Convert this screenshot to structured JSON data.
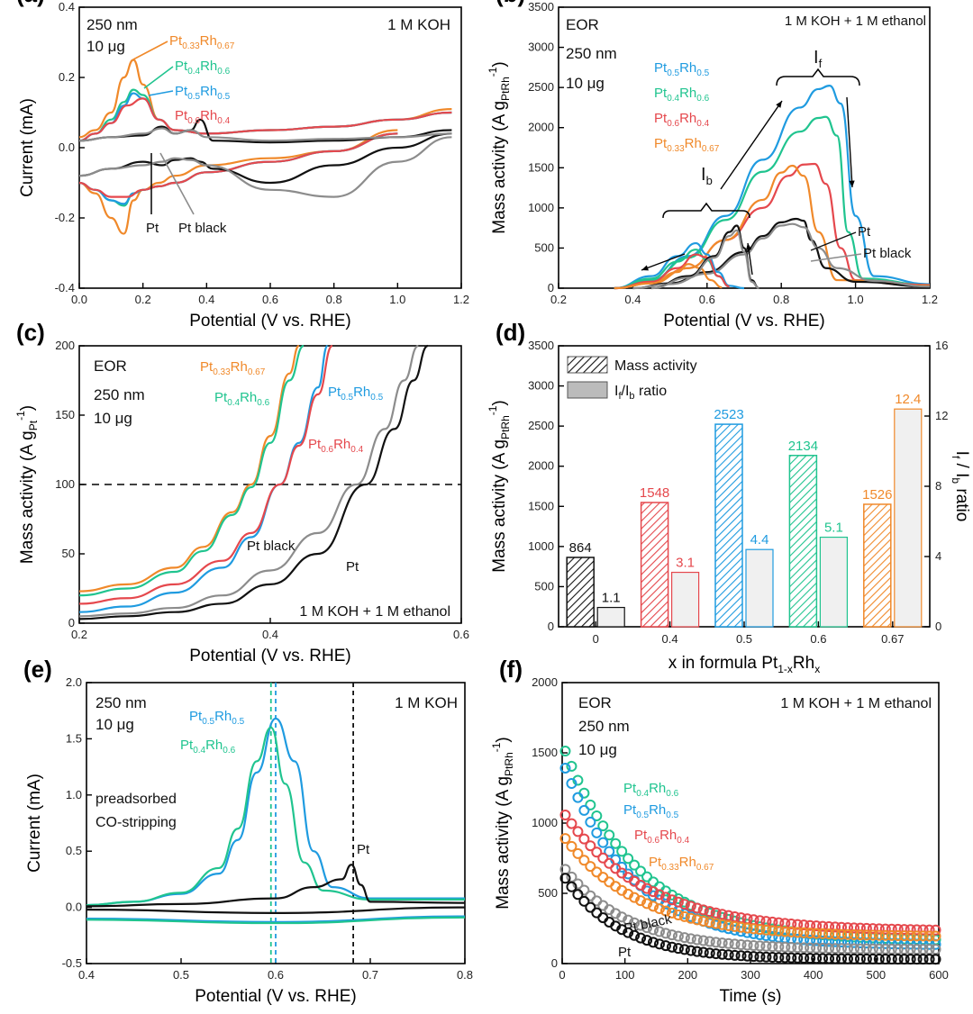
{
  "colors": {
    "Pt": "#111111",
    "Pt black": "#8c8c8c",
    "Pt0.5Rh0.5": "#1f9be0",
    "Pt0.4Rh0.6": "#20c48f",
    "Pt0.6Rh0.4": "#e5484d",
    "Pt0.33Rh0.67": "#f0892a"
  },
  "chart_data": [
    {
      "panel": "(a)",
      "type": "line",
      "xlabel": "Potential (V vs. RHE)",
      "ylabel": "Current (mA)",
      "xlim": [
        0.0,
        1.2
      ],
      "ylim": [
        -0.4,
        0.4
      ],
      "xticks": [
        "0.0",
        "0.2",
        "0.4",
        "0.6",
        "0.8",
        "1.0",
        "1.2"
      ],
      "yticks": [
        "-0.4",
        "-0.2",
        "0.0",
        "0.2",
        "0.4"
      ],
      "annotations": [
        "250 nm",
        "10 μg",
        "1 M KOH"
      ],
      "labels": [
        {
          "base": "Pt",
          "s1": "0.33",
          "mid": "Rh",
          "s2": "0.67",
          "key": "Pt0.33Rh0.67"
        },
        {
          "base": "Pt",
          "s1": "0.4",
          "mid": "Rh",
          "s2": "0.6",
          "key": "Pt0.4Rh0.6"
        },
        {
          "base": "Pt",
          "s1": "0.5",
          "mid": "Rh",
          "s2": "0.5",
          "key": "Pt0.5Rh0.5"
        },
        {
          "base": "Pt",
          "s1": "0.6",
          "mid": "Rh",
          "s2": "0.4",
          "key": "Pt0.6Rh0.4"
        }
      ],
      "pt_label": "Pt",
      "ptblack_label": "Pt black",
      "series": [
        {
          "name": "Pt0.33Rh0.67",
          "x": [
            0,
            0.05,
            0.1,
            0.14,
            0.17,
            0.2,
            0.25,
            0.3,
            0.4,
            0.6,
            0.8,
            1.0,
            1.17
          ],
          "y": [
            0.03,
            0.05,
            0.1,
            0.2,
            0.25,
            0.18,
            0.08,
            0.05,
            0.04,
            0.05,
            0.06,
            0.08,
            0.11
          ]
        },
        {
          "name": "Pt0.4Rh0.6",
          "x": [
            0,
            0.05,
            0.1,
            0.14,
            0.17,
            0.2,
            0.25,
            0.3,
            0.4,
            0.6,
            0.8,
            1.0,
            1.17
          ],
          "y": [
            0.02,
            0.04,
            0.08,
            0.13,
            0.165,
            0.15,
            0.08,
            0.05,
            0.04,
            0.05,
            0.06,
            0.08,
            0.1
          ]
        },
        {
          "name": "Pt0.5Rh0.5",
          "x": [
            0,
            0.05,
            0.1,
            0.14,
            0.17,
            0.2,
            0.25,
            0.3,
            0.4,
            0.6,
            0.8,
            1.0,
            1.17
          ],
          "y": [
            0.02,
            0.04,
            0.07,
            0.12,
            0.155,
            0.14,
            0.08,
            0.05,
            0.04,
            0.05,
            0.06,
            0.08,
            0.1
          ]
        },
        {
          "name": "Pt0.6Rh0.4",
          "x": [
            0,
            0.05,
            0.1,
            0.15,
            0.2,
            0.25,
            0.3,
            0.4,
            0.6,
            0.8,
            1.0,
            1.17
          ],
          "y": [
            0.02,
            0.04,
            0.07,
            0.12,
            0.14,
            0.08,
            0.05,
            0.04,
            0.05,
            0.06,
            0.08,
            0.1
          ]
        },
        {
          "name": "Pt",
          "x": [
            0,
            0.1,
            0.2,
            0.26,
            0.3,
            0.35,
            0.38,
            0.42,
            0.6,
            0.8,
            1.0,
            1.17
          ],
          "y": [
            0.02,
            0.03,
            0.035,
            0.06,
            0.04,
            0.05,
            0.08,
            0.02,
            0.015,
            0.02,
            0.03,
            0.05
          ]
        },
        {
          "name": "Pt black",
          "x": [
            0,
            0.1,
            0.2,
            0.26,
            0.3,
            0.35,
            0.4,
            0.6,
            0.8,
            1.0,
            1.17
          ],
          "y": [
            0.02,
            0.03,
            0.04,
            0.055,
            0.04,
            0.05,
            0.03,
            0.02,
            0.025,
            0.03,
            0.04
          ]
        }
      ]
    },
    {
      "panel": "(b)",
      "type": "line",
      "xlabel": "Potential (V vs. RHE)",
      "ylabel": "Mass activity (A g",
      "ylabel_sub": "PtRh",
      "ylabel_end": ")",
      "ylabel_sup": "-1",
      "xlim": [
        0.2,
        1.2
      ],
      "ylim": [
        0,
        3500
      ],
      "xticks": [
        "0.2",
        "0.4",
        "0.6",
        "0.8",
        "1.0",
        "1.2"
      ],
      "yticks": [
        "0",
        "500",
        "1000",
        "1500",
        "2000",
        "2500",
        "3000",
        "3500"
      ],
      "annotations": [
        "EOR",
        "250 nm",
        "10 μg",
        "1 M KOH + 1 M ethanol"
      ],
      "If_label": {
        "base": "I",
        "sub": "f"
      },
      "Ib_label": {
        "base": "I",
        "sub": "b"
      },
      "labels": [
        {
          "base": "Pt",
          "s1": "0.5",
          "mid": "Rh",
          "s2": "0.5",
          "key": "Pt0.5Rh0.5"
        },
        {
          "base": "Pt",
          "s1": "0.4",
          "mid": "Rh",
          "s2": "0.6",
          "key": "Pt0.4Rh0.6"
        },
        {
          "base": "Pt",
          "s1": "0.6",
          "mid": "Rh",
          "s2": "0.4",
          "key": "Pt0.6Rh0.4"
        },
        {
          "base": "Pt",
          "s1": "0.33",
          "mid": "Rh",
          "s2": "0.67",
          "key": "Pt0.33Rh0.67"
        }
      ],
      "pt_label": "Pt",
      "ptblack_label": "Pt black",
      "series": [
        {
          "name": "Pt0.5Rh0.5",
          "x": [
            0.35,
            0.45,
            0.55,
            0.65,
            0.75,
            0.85,
            0.9,
            0.93,
            0.96,
            1.0,
            1.05,
            1.2
          ],
          "y": [
            0,
            100,
            400,
            900,
            1600,
            2250,
            2480,
            2523,
            2300,
            900,
            150,
            50
          ]
        },
        {
          "name": "Pt0.4Rh0.6",
          "x": [
            0.35,
            0.45,
            0.55,
            0.65,
            0.75,
            0.85,
            0.9,
            0.92,
            0.95,
            0.98,
            1.02,
            1.2
          ],
          "y": [
            0,
            100,
            380,
            850,
            1450,
            1950,
            2120,
            2134,
            1900,
            700,
            120,
            40
          ]
        },
        {
          "name": "Pt0.6Rh0.4",
          "x": [
            0.35,
            0.45,
            0.55,
            0.65,
            0.75,
            0.82,
            0.86,
            0.89,
            0.92,
            0.96,
            1.0,
            1.2
          ],
          "y": [
            0,
            80,
            250,
            600,
            1000,
            1400,
            1540,
            1548,
            1300,
            500,
            100,
            40
          ]
        },
        {
          "name": "Pt0.33Rh0.67",
          "x": [
            0.35,
            0.45,
            0.55,
            0.65,
            0.75,
            0.8,
            0.83,
            0.86,
            0.9,
            0.95,
            1.2
          ],
          "y": [
            0,
            60,
            250,
            600,
            1100,
            1440,
            1526,
            1400,
            700,
            100,
            30
          ]
        },
        {
          "name": "Pt",
          "x": [
            0.4,
            0.5,
            0.6,
            0.7,
            0.75,
            0.8,
            0.84,
            0.86,
            0.88,
            0.92,
            1.0,
            1.2
          ],
          "y": [
            0,
            60,
            200,
            450,
            650,
            820,
            864,
            840,
            600,
            250,
            80,
            20
          ]
        },
        {
          "name": "Pt black",
          "x": [
            0.4,
            0.5,
            0.6,
            0.7,
            0.75,
            0.8,
            0.83,
            0.86,
            0.9,
            0.95,
            1.05,
            1.2
          ],
          "y": [
            0,
            50,
            180,
            420,
            620,
            780,
            800,
            760,
            500,
            250,
            90,
            20
          ]
        }
      ]
    },
    {
      "panel": "(c)",
      "type": "line",
      "xlabel": "Potential (V vs. RHE)",
      "ylabel": "Mass activity (A g",
      "ylabel_sub": "Pt",
      "ylabel_end": ")",
      "ylabel_sup": "-1",
      "xlim": [
        0.2,
        0.6
      ],
      "ylim": [
        0,
        200
      ],
      "xticks": [
        "0.2",
        "0.4",
        "0.6"
      ],
      "yticks": [
        "0",
        "50",
        "100",
        "150",
        "200"
      ],
      "reference_line": 100,
      "annotations": [
        "EOR",
        "250 nm",
        "10 μg",
        "1 M KOH + 1 M ethanol"
      ],
      "labels": [
        {
          "base": "Pt",
          "s1": "0.33",
          "mid": "Rh",
          "s2": "0.67",
          "key": "Pt0.33Rh0.67"
        },
        {
          "base": "Pt",
          "s1": "0.4",
          "mid": "Rh",
          "s2": "0.6",
          "key": "Pt0.4Rh0.6"
        },
        {
          "base": "Pt",
          "s1": "0.5",
          "mid": "Rh",
          "s2": "0.5",
          "key": "Pt0.5Rh0.5"
        },
        {
          "base": "Pt",
          "s1": "0.6",
          "mid": "Rh",
          "s2": "0.4",
          "key": "Pt0.6Rh0.4"
        }
      ],
      "pt_label": "Pt",
      "ptblack_label": "Pt black",
      "series": [
        {
          "name": "Pt0.33Rh0.67",
          "x": [
            0.2,
            0.25,
            0.3,
            0.33,
            0.36,
            0.38,
            0.4,
            0.42,
            0.43
          ],
          "y": [
            23,
            28,
            40,
            55,
            80,
            100,
            135,
            180,
            200
          ]
        },
        {
          "name": "Pt0.4Rh0.6",
          "x": [
            0.2,
            0.25,
            0.3,
            0.33,
            0.36,
            0.38,
            0.4,
            0.42,
            0.435
          ],
          "y": [
            20,
            25,
            37,
            52,
            78,
            98,
            130,
            175,
            200
          ]
        },
        {
          "name": "Pt0.5Rh0.5",
          "x": [
            0.2,
            0.25,
            0.3,
            0.35,
            0.38,
            0.41,
            0.43,
            0.45,
            0.46
          ],
          "y": [
            8,
            12,
            22,
            40,
            62,
            100,
            130,
            170,
            200
          ]
        },
        {
          "name": "Pt0.6Rh0.4",
          "x": [
            0.2,
            0.25,
            0.3,
            0.35,
            0.38,
            0.41,
            0.43,
            0.45,
            0.465
          ],
          "y": [
            14,
            18,
            28,
            45,
            65,
            100,
            128,
            165,
            200
          ]
        },
        {
          "name": "Pt black",
          "x": [
            0.2,
            0.25,
            0.3,
            0.35,
            0.4,
            0.45,
            0.49,
            0.52,
            0.54,
            0.555
          ],
          "y": [
            5,
            7,
            11,
            20,
            38,
            65,
            100,
            140,
            175,
            200
          ]
        },
        {
          "name": "Pt",
          "x": [
            0.2,
            0.25,
            0.3,
            0.35,
            0.4,
            0.45,
            0.5,
            0.53,
            0.55,
            0.565
          ],
          "y": [
            3,
            5,
            8,
            14,
            28,
            50,
            100,
            140,
            175,
            200
          ]
        }
      ]
    },
    {
      "panel": "(d)",
      "type": "bar",
      "categories": [
        "0",
        "0.4",
        "0.5",
        "0.6",
        "0.67"
      ],
      "xlabel": "x in formula Pt",
      "xlabel_sub1": "1-x",
      "xlabel_mid": "Rh",
      "xlabel_sub2": "x",
      "ylabel": "Mass activity (A g",
      "ylabel_sub": "PtRh",
      "ylabel_end": ")",
      "ylabel_sup": "-1",
      "ylabel_right": "I",
      "ylabel_right_sub1": "f",
      "ylabel_right_mid": " / I",
      "ylabel_right_sub2": "b",
      "ylabel_right_end": " ratio",
      "ylim": [
        0,
        3500
      ],
      "ylim_right": [
        0,
        16
      ],
      "yticks": [
        "0",
        "500",
        "1000",
        "1500",
        "2000",
        "2500",
        "3000",
        "3500"
      ],
      "yticks_right": [
        "0",
        "4",
        "8",
        "12",
        "16"
      ],
      "legend": [
        "Mass activity",
        "I",
        "f",
        "/I",
        "b",
        " ratio"
      ],
      "series": [
        {
          "name": "Mass activity",
          "values": [
            864,
            1548,
            2523,
            2134,
            1526
          ],
          "labels": [
            "864",
            "1548",
            "2523",
            "2134",
            "1526"
          ]
        },
        {
          "name": "If/Ib ratio",
          "values": [
            1.1,
            3.1,
            4.4,
            5.1,
            12.4
          ],
          "labels": [
            "1.1",
            "3.1",
            "4.4",
            "5.1",
            "12.4"
          ]
        }
      ],
      "bar_colors": [
        "#111111",
        "#e5484d",
        "#1f9be0",
        "#20c48f",
        "#f0892a"
      ]
    },
    {
      "panel": "(e)",
      "type": "line",
      "xlabel": "Potential (V vs. RHE)",
      "ylabel": "Current (mA)",
      "xlim": [
        0.4,
        0.8
      ],
      "ylim": [
        -0.5,
        2.0
      ],
      "xticks": [
        "0.4",
        "0.5",
        "0.6",
        "0.7",
        "0.8"
      ],
      "yticks": [
        "-0.5",
        "0.0",
        "0.5",
        "1.0",
        "1.5",
        "2.0"
      ],
      "vlines": [
        {
          "x": 0.595,
          "key": "Pt0.4Rh0.6"
        },
        {
          "x": 0.6,
          "key": "Pt0.5Rh0.5"
        },
        {
          "x": 0.682,
          "key": "Pt"
        }
      ],
      "annotations": [
        "250 nm",
        "10 μg",
        "1 M KOH",
        "preadsorbed",
        "CO-stripping"
      ],
      "labels": [
        {
          "base": "Pt",
          "s1": "0.5",
          "mid": "Rh",
          "s2": "0.5",
          "key": "Pt0.5Rh0.5"
        },
        {
          "base": "Pt",
          "s1": "0.4",
          "mid": "Rh",
          "s2": "0.6",
          "key": "Pt0.4Rh0.6"
        }
      ],
      "pt_label": "Pt",
      "series": [
        {
          "name": "Pt0.5Rh0.5",
          "x": [
            0.4,
            0.45,
            0.5,
            0.54,
            0.56,
            0.58,
            0.6,
            0.62,
            0.64,
            0.66,
            0.7,
            0.8
          ],
          "y": [
            0.02,
            0.05,
            0.12,
            0.3,
            0.6,
            1.2,
            1.68,
            1.3,
            0.5,
            0.18,
            0.08,
            0.08
          ]
        },
        {
          "name": "Pt0.4Rh0.6",
          "x": [
            0.4,
            0.45,
            0.5,
            0.54,
            0.56,
            0.58,
            0.595,
            0.61,
            0.63,
            0.65,
            0.7,
            0.8
          ],
          "y": [
            0.02,
            0.05,
            0.13,
            0.35,
            0.7,
            1.3,
            1.6,
            1.1,
            0.4,
            0.15,
            0.07,
            0.07
          ]
        },
        {
          "name": "Pt",
          "x": [
            0.4,
            0.5,
            0.6,
            0.64,
            0.67,
            0.68,
            0.69,
            0.7,
            0.8
          ],
          "y": [
            0.01,
            0.03,
            0.08,
            0.18,
            0.25,
            0.38,
            0.2,
            0.05,
            0.04
          ]
        }
      ]
    },
    {
      "panel": "(f)",
      "type": "scatter",
      "xlabel": "Time (s)",
      "ylabel": "Mass activity (A g",
      "ylabel_sub": "PtRh",
      "ylabel_end": ")",
      "ylabel_sup": "-1",
      "xlim": [
        0,
        600
      ],
      "ylim": [
        0,
        2000
      ],
      "xticks": [
        "0",
        "100",
        "200",
        "300",
        "400",
        "500",
        "600"
      ],
      "yticks": [
        "0",
        "500",
        "1000",
        "1500",
        "2000"
      ],
      "annotations": [
        "EOR",
        "250 nm",
        "10 μg",
        "1 M KOH + 1 M ethanol"
      ],
      "labels": [
        {
          "base": "Pt",
          "s1": "0.4",
          "mid": "Rh",
          "s2": "0.6",
          "key": "Pt0.4Rh0.6"
        },
        {
          "base": "Pt",
          "s1": "0.5",
          "mid": "Rh",
          "s2": "0.5",
          "key": "Pt0.5Rh0.5"
        },
        {
          "base": "Pt",
          "s1": "0.6",
          "mid": "Rh",
          "s2": "0.4",
          "key": "Pt0.6Rh0.4"
        },
        {
          "base": "Pt",
          "s1": "0.33",
          "mid": "Rh",
          "s2": "0.67",
          "key": "Pt0.33Rh0.67"
        }
      ],
      "pt_label": "Pt",
      "ptblack_label": "Pt black",
      "series": [
        {
          "name": "Pt0.4Rh0.6",
          "start": 1570,
          "end": 160,
          "tau": 120
        },
        {
          "name": "Pt0.5Rh0.5",
          "start": 1450,
          "end": 130,
          "tau": 110
        },
        {
          "name": "Pt0.6Rh0.4",
          "start": 1090,
          "end": 230,
          "tau": 130
        },
        {
          "name": "Pt0.33Rh0.67",
          "start": 920,
          "end": 190,
          "tau": 120
        },
        {
          "name": "Pt black",
          "start": 700,
          "end": 100,
          "tau": 100
        },
        {
          "name": "Pt",
          "start": 640,
          "end": 30,
          "tau": 90
        }
      ]
    }
  ]
}
